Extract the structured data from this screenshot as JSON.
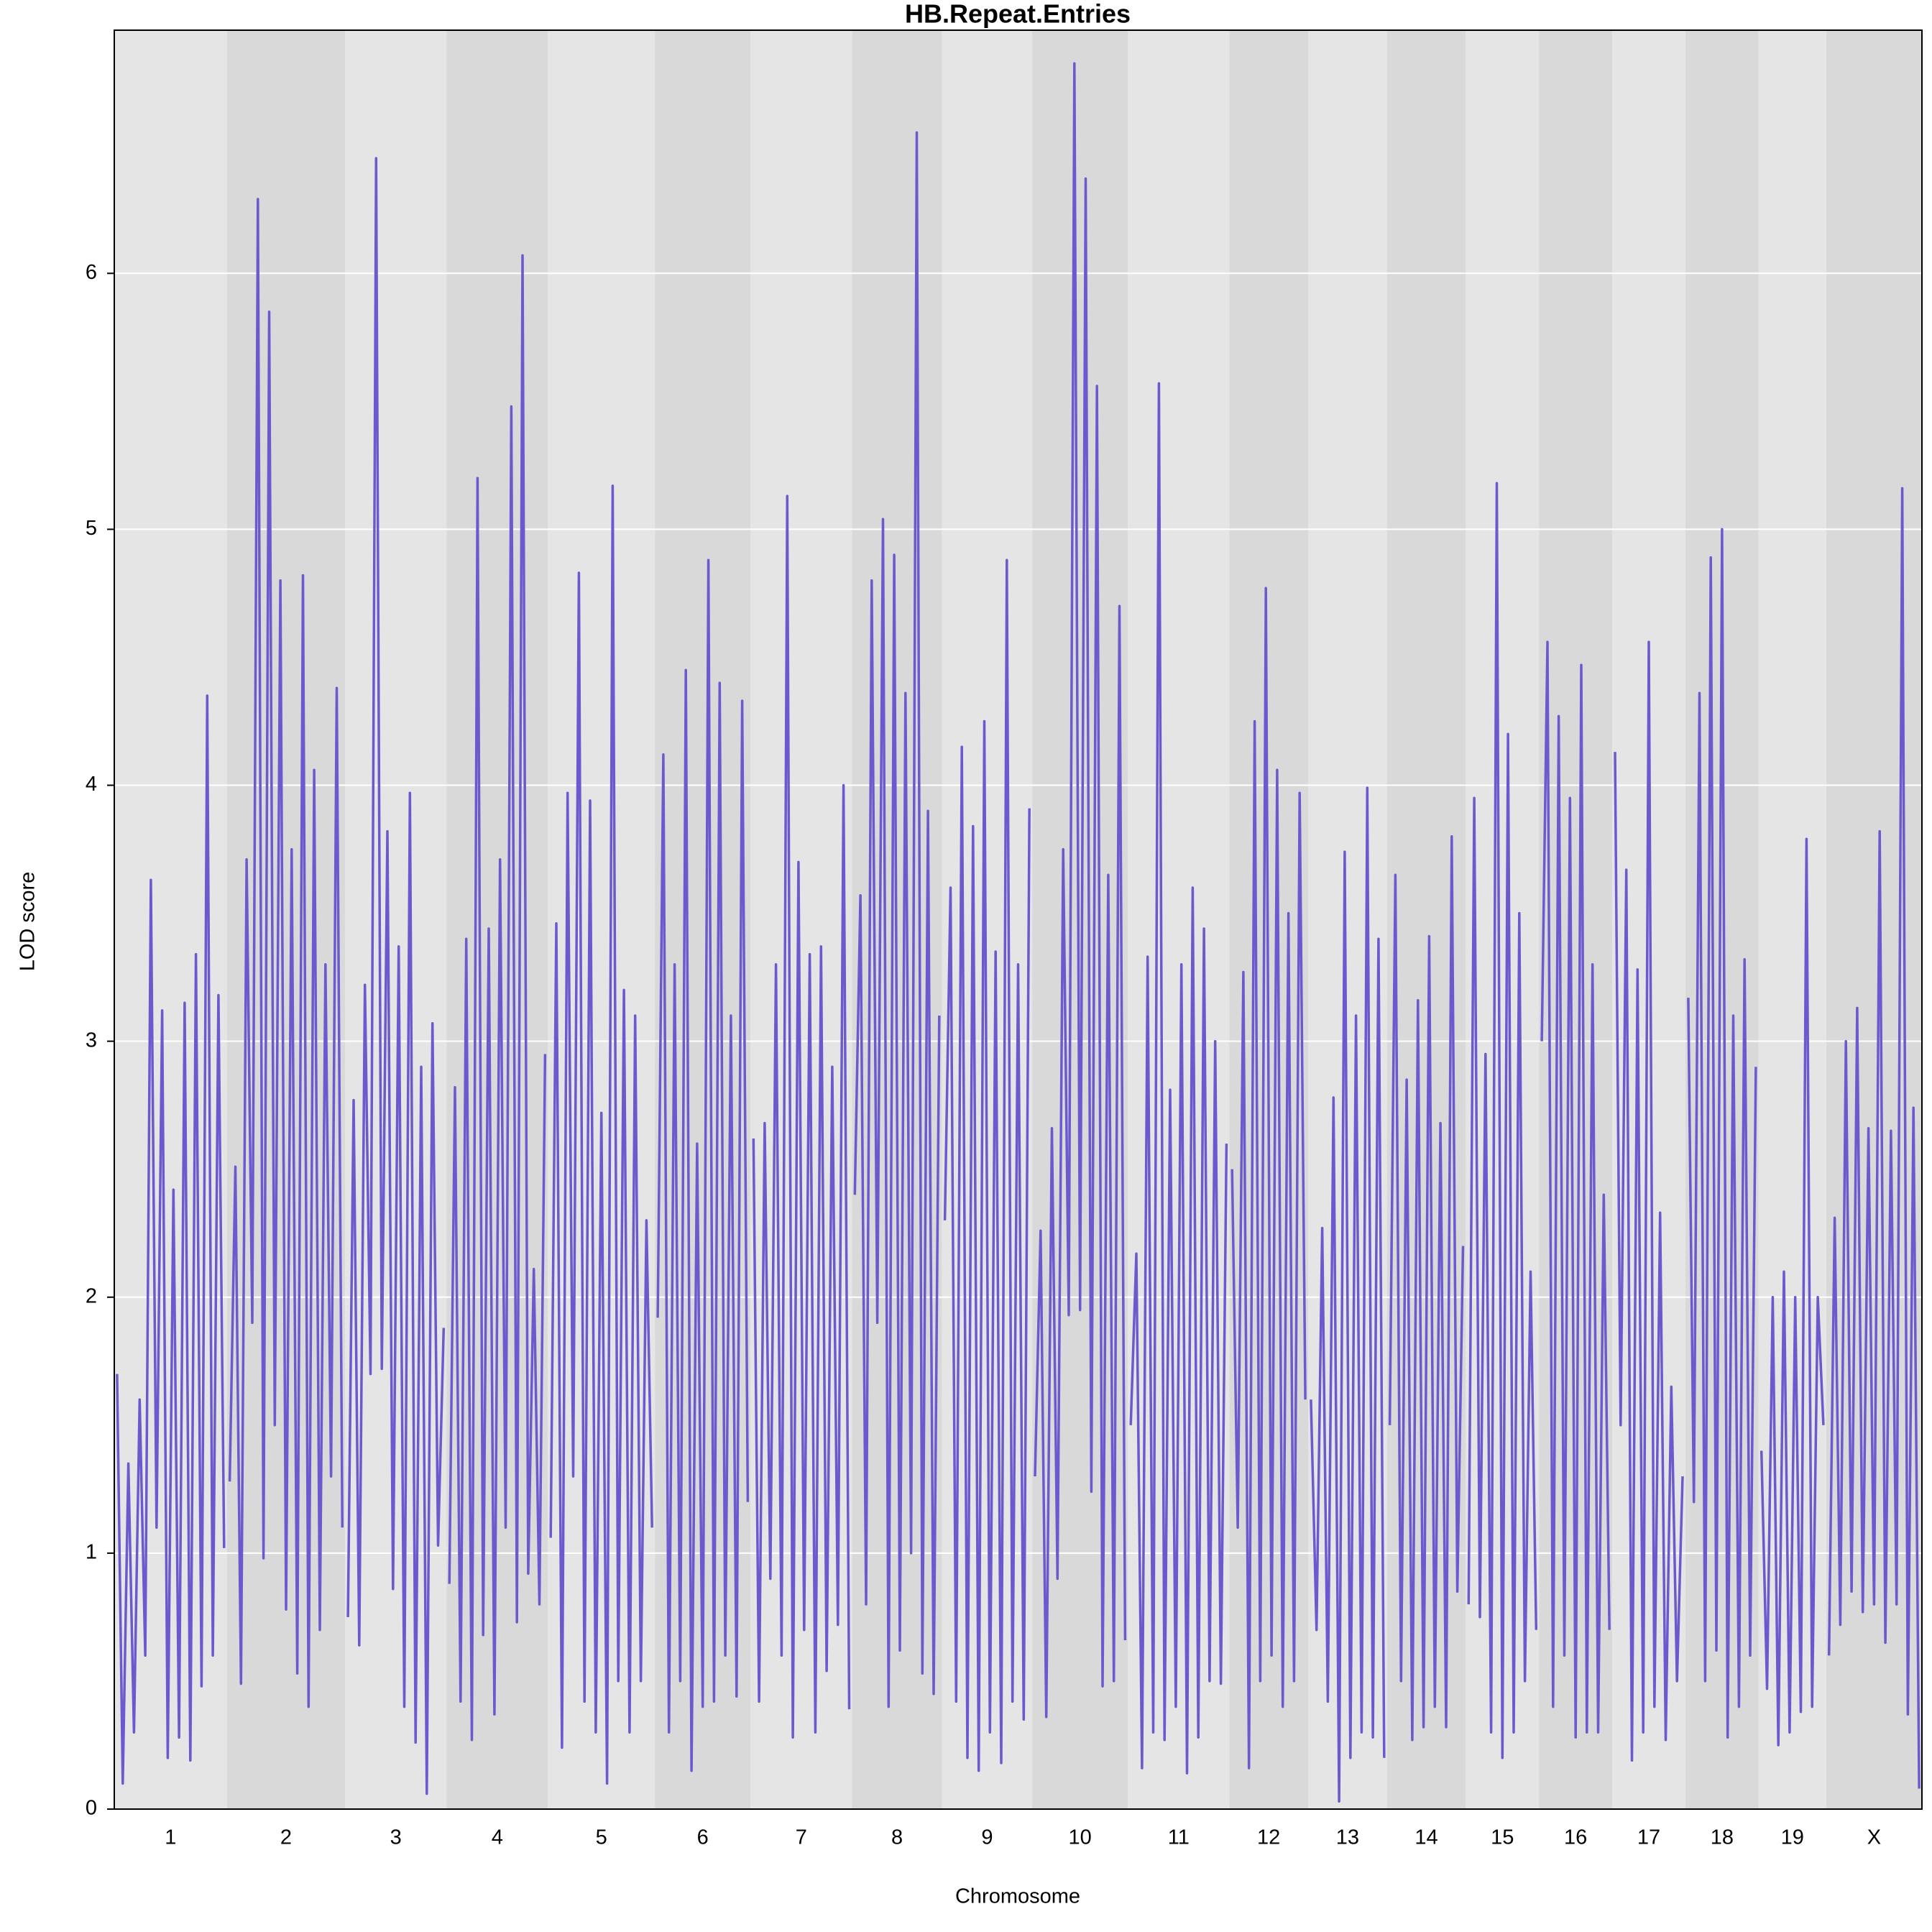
{
  "chart_data": {
    "type": "line",
    "title": "HB.Repeat.Entries",
    "xlabel": "Chromosome",
    "ylabel": "LOD score",
    "color": "#6a5acd",
    "band_colors": [
      "#e5e5e5",
      "#d9d9d9"
    ],
    "grid": true,
    "grid_color": "#ffffff",
    "ylim": [
      0,
      6.95
    ],
    "yticks": [
      0,
      1,
      2,
      3,
      4,
      5,
      6
    ],
    "categories": [
      "1",
      "2",
      "3",
      "4",
      "5",
      "6",
      "7",
      "8",
      "9",
      "10",
      "11",
      "12",
      "13",
      "14",
      "15",
      "16",
      "17",
      "18",
      "19",
      "X"
    ],
    "values": [
      [
        1.7,
        0.1,
        1.35,
        0.3,
        1.6,
        0.6,
        3.63,
        1.1,
        3.12,
        0.2,
        2.42,
        0.28,
        3.15,
        0.19,
        3.34,
        0.48,
        4.35,
        0.6,
        3.18,
        1.02
      ],
      [
        1.28,
        2.51,
        0.49,
        3.71,
        1.9,
        6.29,
        0.98,
        5.85,
        1.5,
        4.8,
        0.78,
        3.75,
        0.53,
        4.82,
        0.4,
        4.06,
        0.7,
        3.3,
        1.3,
        4.38,
        1.1
      ],
      [
        0.75,
        2.77,
        0.64,
        3.22,
        1.7,
        6.45,
        1.72,
        3.82,
        0.86,
        3.37,
        0.4,
        3.97,
        0.26,
        2.9,
        0.06,
        3.07,
        1.03,
        1.88
      ],
      [
        0.88,
        2.82,
        0.42,
        3.4,
        0.27,
        5.2,
        0.68,
        3.44,
        0.37,
        3.71,
        1.1,
        5.48,
        0.73,
        6.07,
        0.92,
        2.11,
        0.8,
        2.95
      ],
      [
        1.06,
        3.46,
        0.24,
        3.97,
        1.3,
        4.83,
        0.42,
        3.94,
        0.3,
        2.72,
        0.1,
        5.17,
        0.5,
        3.2,
        0.3,
        3.1,
        0.5,
        2.3,
        1.1
      ],
      [
        1.92,
        4.12,
        0.3,
        3.3,
        0.5,
        4.45,
        0.15,
        2.6,
        0.4,
        4.88,
        0.42,
        4.4,
        0.6,
        3.1,
        0.44,
        4.33,
        1.2
      ],
      [
        2.62,
        0.42,
        2.68,
        0.9,
        3.3,
        0.6,
        5.13,
        0.28,
        3.7,
        0.7,
        3.34,
        0.3,
        3.37,
        0.54,
        2.9,
        0.72,
        4.0,
        0.39
      ],
      [
        2.4,
        3.57,
        0.8,
        4.8,
        1.9,
        5.04,
        0.4,
        4.9,
        0.62,
        4.36,
        1.0,
        6.55,
        0.53,
        3.9,
        0.45,
        3.1
      ],
      [
        2.3,
        3.6,
        0.42,
        4.15,
        0.2,
        3.84,
        0.15,
        4.25,
        0.3,
        3.35,
        0.18,
        4.88,
        0.42,
        3.3,
        0.35,
        3.91
      ],
      [
        1.3,
        2.26,
        0.36,
        2.66,
        0.9,
        3.75,
        1.93,
        6.82,
        1.95,
        6.37,
        1.24,
        5.56,
        0.48,
        3.65,
        0.5,
        4.7,
        0.66
      ],
      [
        1.5,
        2.17,
        0.16,
        3.33,
        0.3,
        5.57,
        0.27,
        2.81,
        0.4,
        3.3,
        0.14,
        3.6,
        0.28,
        3.44,
        0.5,
        3.0,
        0.49,
        2.6
      ],
      [
        2.5,
        1.1,
        3.27,
        0.16,
        4.25,
        0.5,
        4.77,
        0.6,
        4.06,
        0.4,
        3.5,
        0.5,
        3.97,
        1.6
      ],
      [
        1.6,
        0.7,
        2.27,
        0.42,
        2.78,
        0.03,
        3.74,
        0.2,
        3.1,
        0.3,
        3.99,
        0.28,
        3.4,
        0.2
      ],
      [
        1.5,
        3.65,
        0.5,
        2.85,
        0.27,
        3.16,
        0.32,
        3.41,
        0.4,
        2.68,
        0.32,
        3.8,
        0.85,
        2.2
      ],
      [
        0.8,
        3.95,
        0.75,
        2.95,
        0.3,
        5.18,
        0.2,
        4.2,
        0.3,
        3.5,
        0.5,
        2.1,
        0.7
      ],
      [
        3.0,
        4.56,
        0.4,
        4.27,
        0.6,
        3.95,
        0.28,
        4.47,
        0.3,
        3.3,
        0.3,
        2.4,
        0.7
      ],
      [
        4.13,
        1.5,
        3.67,
        0.19,
        3.28,
        0.3,
        4.56,
        0.4,
        2.33,
        0.27,
        1.65,
        0.5,
        1.3
      ],
      [
        3.17,
        1.2,
        4.36,
        0.5,
        4.89,
        0.62,
        5.0,
        0.28,
        3.1,
        0.4,
        3.32,
        0.6,
        2.9
      ],
      [
        1.4,
        0.47,
        2.0,
        0.25,
        2.1,
        0.3,
        2.0,
        0.38,
        3.79,
        0.4,
        2.0,
        1.5
      ],
      [
        0.6,
        2.31,
        0.72,
        3.0,
        0.85,
        3.13,
        0.77,
        2.66,
        0.8,
        3.82,
        0.65,
        2.65,
        0.8,
        5.16,
        0.37,
        2.74,
        0.08
      ]
    ]
  }
}
